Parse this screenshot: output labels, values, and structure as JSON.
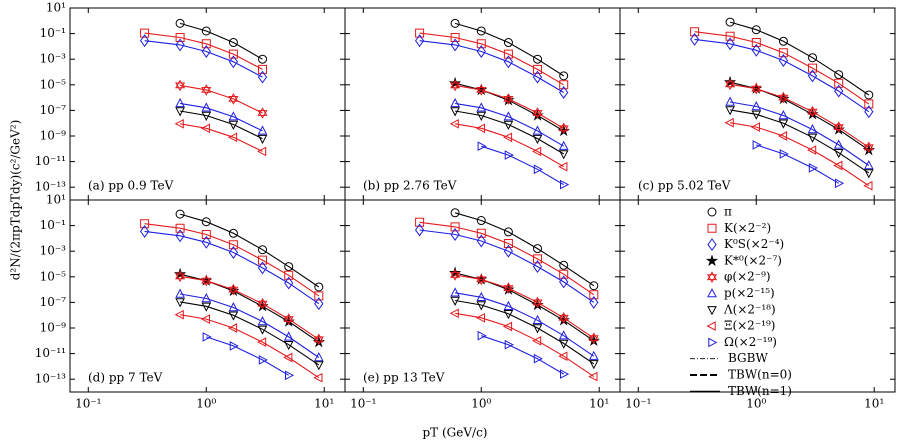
{
  "axes": {
    "xlabel": "pT (GeV/c)",
    "ylabel": "d²N/(2πpTdpTdy)(c²/GeV²)",
    "xscale": "log",
    "yscale": "log",
    "xlim": [
      0.07,
      15
    ],
    "xticks": [
      {
        "value": 0.1,
        "label": "10⁻¹"
      },
      {
        "value": 1,
        "label": "10⁰"
      },
      {
        "value": 10,
        "label": "10¹"
      }
    ],
    "ylim": [
      1e-14,
      10
    ],
    "yticks": [
      {
        "value": 10,
        "label": "10¹"
      },
      {
        "value": 0.1,
        "label": "10⁻¹"
      },
      {
        "value": 0.001,
        "label": "10⁻³"
      },
      {
        "value": 1e-05,
        "label": "10⁻⁵"
      },
      {
        "value": 1e-07,
        "label": "10⁻⁷"
      },
      {
        "value": 1e-09,
        "label": "10⁻⁹"
      },
      {
        "value": 1e-11,
        "label": "10⁻¹¹"
      },
      {
        "value": 1e-13,
        "label": "10⁻¹³"
      }
    ]
  },
  "chart_data": [
    {
      "type": "line",
      "title": "(a) pp 0.9 TeV",
      "x": [
        0.15,
        0.3,
        0.6,
        1,
        1.7,
        3,
        5,
        9
      ],
      "series": [
        {
          "name": "π",
          "color": "#000000",
          "marker": "circle",
          "values": [
            null,
            null,
            0.63,
            0.16,
            0.02,
            0.001,
            null,
            null
          ]
        },
        {
          "name": "K(×2⁻²)",
          "color": "#e41a1c",
          "marker": "square",
          "values": [
            null,
            0.11,
            0.05,
            0.016,
            0.0025,
            0.00016,
            null,
            null
          ]
        },
        {
          "name": "K⁰S(×2⁻⁴)",
          "color": "#1f1fe0",
          "marker": "diamond",
          "values": [
            null,
            0.028,
            0.013,
            0.004,
            0.00063,
            4e-05,
            null,
            null
          ]
        },
        {
          "name": "φ(×2⁻⁹)",
          "color": "#e41a1c",
          "marker": "david",
          "values": [
            null,
            null,
            8.9e-06,
            4e-06,
            7.9e-07,
            6.3e-08,
            null,
            null
          ]
        },
        {
          "name": "p(×2⁻¹⁵)",
          "color": "#1f1fe0",
          "marker": "tri-up",
          "values": [
            null,
            null,
            3.5e-07,
            1.6e-07,
            3.2e-08,
            2.5e-09,
            null,
            null
          ]
        },
        {
          "name": "Λ(×2⁻¹⁸)",
          "color": "#000000",
          "marker": "tri-down",
          "values": [
            null,
            null,
            8.9e-08,
            4e-08,
            7.9e-09,
            6.3e-10,
            null,
            null
          ]
        },
        {
          "name": "Ξ(×2⁻¹⁹)",
          "color": "#e41a1c",
          "marker": "tri-left",
          "values": [
            null,
            null,
            8.9e-09,
            4e-09,
            7.9e-10,
            6.3e-11,
            null,
            null
          ]
        }
      ]
    },
    {
      "type": "line",
      "title": "(b) pp 2.76 TeV",
      "x": [
        0.15,
        0.3,
        0.6,
        1,
        1.7,
        3,
        5,
        9
      ],
      "series": [
        {
          "name": "π",
          "color": "#000000",
          "marker": "circle",
          "values": [
            null,
            null,
            0.63,
            0.16,
            0.02,
            0.001,
            5e-05,
            null
          ]
        },
        {
          "name": "K(×2⁻²)",
          "color": "#e41a1c",
          "marker": "square",
          "values": [
            null,
            0.11,
            0.05,
            0.016,
            0.0025,
            0.00016,
            1e-05,
            null
          ]
        },
        {
          "name": "K⁰S(×2⁻⁴)",
          "color": "#1f1fe0",
          "marker": "diamond",
          "values": [
            null,
            0.028,
            0.013,
            0.004,
            0.00063,
            4e-05,
            2.5e-06,
            null
          ]
        },
        {
          "name": "K*⁰(×2⁻⁷)",
          "color": "#000000",
          "marker": "star",
          "values": [
            null,
            null,
            1.3e-05,
            4e-06,
            6.3e-07,
            4e-08,
            2.5e-09,
            null
          ]
        },
        {
          "name": "φ(×2⁻⁹)",
          "color": "#e41a1c",
          "marker": "david",
          "values": [
            null,
            null,
            8.9e-06,
            4e-06,
            7.9e-07,
            6.3e-08,
            4e-09,
            null
          ]
        },
        {
          "name": "p(×2⁻¹⁵)",
          "color": "#1f1fe0",
          "marker": "tri-up",
          "values": [
            null,
            null,
            3.5e-07,
            1.6e-07,
            3.2e-08,
            2.5e-09,
            1.6e-10,
            null
          ]
        },
        {
          "name": "Λ(×2⁻¹⁸)",
          "color": "#000000",
          "marker": "tri-down",
          "values": [
            null,
            null,
            8.9e-08,
            4e-08,
            7.9e-09,
            6.3e-10,
            4e-11,
            null
          ]
        },
        {
          "name": "Ξ(×2⁻¹⁹)",
          "color": "#e41a1c",
          "marker": "tri-left",
          "values": [
            null,
            null,
            8.9e-09,
            4e-09,
            7.9e-10,
            6.3e-11,
            4e-12,
            null
          ]
        },
        {
          "name": "Ω(×2⁻¹⁹)",
          "color": "#1f1fe0",
          "marker": "tri-right",
          "values": [
            null,
            null,
            null,
            1.6e-10,
            3.2e-11,
            2.5e-12,
            1.6e-13,
            null
          ]
        }
      ]
    },
    {
      "type": "line",
      "title": "(c) pp 5.02 TeV",
      "x": [
        0.15,
        0.3,
        0.6,
        1,
        1.7,
        3,
        5,
        9
      ],
      "series": [
        {
          "name": "π",
          "color": "#000000",
          "marker": "circle",
          "values": [
            null,
            null,
            0.79,
            0.2,
            0.025,
            0.0013,
            6.3e-05,
            1.6e-06
          ]
        },
        {
          "name": "K(×2⁻²)",
          "color": "#e41a1c",
          "marker": "square",
          "values": [
            null,
            0.14,
            0.063,
            0.02,
            0.0032,
            0.0002,
            1.3e-05,
            3.2e-07
          ]
        },
        {
          "name": "K⁰S(×2⁻⁴)",
          "color": "#1f1fe0",
          "marker": "diamond",
          "values": [
            null,
            0.035,
            0.016,
            0.005,
            0.00079,
            5e-05,
            3.2e-06,
            7.9e-08
          ]
        },
        {
          "name": "K*⁰(×2⁻⁷)",
          "color": "#000000",
          "marker": "star",
          "values": [
            null,
            null,
            1.6e-05,
            5e-06,
            7.9e-07,
            5e-08,
            3.2e-09,
            7.9e-11
          ]
        },
        {
          "name": "φ(×2⁻⁹)",
          "color": "#e41a1c",
          "marker": "david",
          "values": [
            null,
            null,
            1.1e-05,
            5e-06,
            1e-06,
            7.9e-08,
            5e-09,
            1.3e-10
          ]
        },
        {
          "name": "p(×2⁻¹⁵)",
          "color": "#1f1fe0",
          "marker": "tri-up",
          "values": [
            null,
            null,
            4.5e-07,
            2e-07,
            4e-08,
            3.2e-09,
            2e-10,
            5e-12
          ]
        },
        {
          "name": "Λ(×2⁻¹⁸)",
          "color": "#000000",
          "marker": "tri-down",
          "values": [
            null,
            null,
            1.1e-07,
            5e-08,
            1e-08,
            7.9e-10,
            5e-11,
            1.3e-12
          ]
        },
        {
          "name": "Ξ(×2⁻¹⁹)",
          "color": "#e41a1c",
          "marker": "tri-left",
          "values": [
            null,
            null,
            1.1e-08,
            5e-09,
            1e-09,
            7.9e-11,
            5e-12,
            1.3e-13
          ]
        },
        {
          "name": "Ω(×2⁻¹⁹)",
          "color": "#1f1fe0",
          "marker": "tri-right",
          "values": [
            null,
            null,
            null,
            2e-10,
            4e-11,
            3.2e-12,
            2e-13,
            null
          ]
        }
      ]
    },
    {
      "type": "line",
      "title": "(d) pp 7 TeV",
      "x": [
        0.15,
        0.3,
        0.6,
        1,
        1.7,
        3,
        5,
        9
      ],
      "series": [
        {
          "name": "π",
          "color": "#000000",
          "marker": "circle",
          "values": [
            null,
            null,
            0.79,
            0.2,
            0.025,
            0.0013,
            6.3e-05,
            1.6e-06
          ]
        },
        {
          "name": "K(×2⁻²)",
          "color": "#e41a1c",
          "marker": "square",
          "values": [
            null,
            0.14,
            0.063,
            0.02,
            0.0032,
            0.0002,
            1.3e-05,
            3.2e-07
          ]
        },
        {
          "name": "K⁰S(×2⁻⁴)",
          "color": "#1f1fe0",
          "marker": "diamond",
          "values": [
            null,
            0.035,
            0.016,
            0.005,
            0.00079,
            5e-05,
            3.2e-06,
            7.9e-08
          ]
        },
        {
          "name": "K*⁰(×2⁻⁷)",
          "color": "#000000",
          "marker": "star",
          "values": [
            null,
            null,
            1.6e-05,
            5e-06,
            7.9e-07,
            5e-08,
            3.2e-09,
            7.9e-11
          ]
        },
        {
          "name": "φ(×2⁻⁹)",
          "color": "#e41a1c",
          "marker": "david",
          "values": [
            null,
            null,
            1.1e-05,
            5e-06,
            1e-06,
            7.9e-08,
            5e-09,
            1.3e-10
          ]
        },
        {
          "name": "p(×2⁻¹⁵)",
          "color": "#1f1fe0",
          "marker": "tri-up",
          "values": [
            null,
            null,
            4.5e-07,
            2e-07,
            4e-08,
            3.2e-09,
            2e-10,
            5e-12
          ]
        },
        {
          "name": "Λ(×2⁻¹⁸)",
          "color": "#000000",
          "marker": "tri-down",
          "values": [
            null,
            null,
            1.1e-07,
            5e-08,
            1e-08,
            7.9e-10,
            5e-11,
            1.3e-12
          ]
        },
        {
          "name": "Ξ(×2⁻¹⁹)",
          "color": "#e41a1c",
          "marker": "tri-left",
          "values": [
            null,
            null,
            1.1e-08,
            5e-09,
            1e-09,
            7.9e-11,
            5e-12,
            1.3e-13
          ]
        },
        {
          "name": "Ω(×2⁻¹⁹)",
          "color": "#1f1fe0",
          "marker": "tri-right",
          "values": [
            null,
            null,
            null,
            2e-10,
            4e-11,
            3.2e-12,
            2e-13,
            null
          ]
        }
      ]
    },
    {
      "type": "line",
      "title": "(e) pp 13 TeV",
      "x": [
        0.15,
        0.3,
        0.6,
        1,
        1.7,
        3,
        5,
        9
      ],
      "series": [
        {
          "name": "π",
          "color": "#000000",
          "marker": "circle",
          "values": [
            null,
            null,
            1,
            0.25,
            0.032,
            0.0016,
            7.9e-05,
            2e-06
          ]
        },
        {
          "name": "K(×2⁻²)",
          "color": "#e41a1c",
          "marker": "square",
          "values": [
            null,
            0.18,
            0.079,
            0.025,
            0.004,
            0.00025,
            1.6e-05,
            4e-07
          ]
        },
        {
          "name": "K⁰S(×2⁻⁴)",
          "color": "#1f1fe0",
          "marker": "diamond",
          "values": [
            null,
            0.045,
            0.02,
            0.0063,
            0.001,
            6.3e-05,
            4e-06,
            1e-07
          ]
        },
        {
          "name": "K*⁰(×2⁻⁷)",
          "color": "#000000",
          "marker": "star",
          "values": [
            null,
            null,
            2e-05,
            6.3e-06,
            1e-06,
            6.3e-08,
            4e-09,
            1e-10
          ]
        },
        {
          "name": "φ(×2⁻⁹)",
          "color": "#e41a1c",
          "marker": "david",
          "values": [
            null,
            null,
            1.4e-05,
            6.3e-06,
            1.3e-06,
            1e-07,
            6.3e-09,
            1.6e-10
          ]
        },
        {
          "name": "p(×2⁻¹⁵)",
          "color": "#1f1fe0",
          "marker": "tri-up",
          "values": [
            null,
            null,
            5.6e-07,
            2.5e-07,
            5e-08,
            4e-09,
            2.5e-10,
            6.3e-12
          ]
        },
        {
          "name": "Λ(×2⁻¹⁸)",
          "color": "#000000",
          "marker": "tri-down",
          "values": [
            null,
            null,
            1.4e-07,
            6.3e-08,
            1.3e-08,
            1e-09,
            6.3e-11,
            1.6e-12
          ]
        },
        {
          "name": "Ξ(×2⁻¹⁹)",
          "color": "#e41a1c",
          "marker": "tri-left",
          "values": [
            null,
            null,
            1.4e-08,
            6.3e-09,
            1.3e-09,
            1e-10,
            6.3e-12,
            1.6e-13
          ]
        },
        {
          "name": "Ω(×2⁻¹⁹)",
          "color": "#1f1fe0",
          "marker": "tri-right",
          "values": [
            null,
            null,
            null,
            2.5e-10,
            5e-11,
            4e-12,
            2.5e-13,
            null
          ]
        }
      ]
    }
  ],
  "legend": {
    "models": [
      {
        "name": "BGBW",
        "style": "dash-dot"
      },
      {
        "name": "TBW(n=0)",
        "style": "dashed"
      },
      {
        "name": "TBW(n=1)",
        "style": "solid"
      }
    ]
  }
}
